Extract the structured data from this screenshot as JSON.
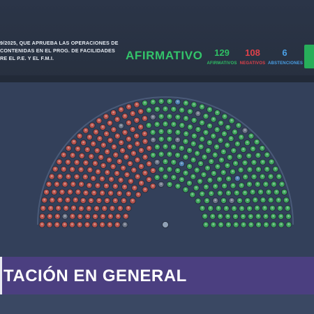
{
  "header": {
    "description_lines": [
      "9/2025, QUE APRUEBA LAS OPERACIONES DE",
      " CONTENIDAS EN EL PROG. DE FACILIDADES",
      "RE EL P.E. Y EL F.M.I."
    ],
    "result": "AFIRMATIVO",
    "afirmativos": {
      "count": "129",
      "label": "AFIRMATIVOS"
    },
    "negativos": {
      "count": "108",
      "label": "NEGATIVOS"
    },
    "abstenciones": {
      "count": "6",
      "label": "ABSTENCIONES"
    }
  },
  "banner": {
    "title": "TACIÓN EN GENERAL"
  },
  "chamber": {
    "colors": {
      "afirmativo": "#3ea45c",
      "negativo": "#b7524b",
      "abstencion": "#4d7fb0",
      "ausente": "#6b7486",
      "presidente": "#8fa0b5"
    }
  }
}
